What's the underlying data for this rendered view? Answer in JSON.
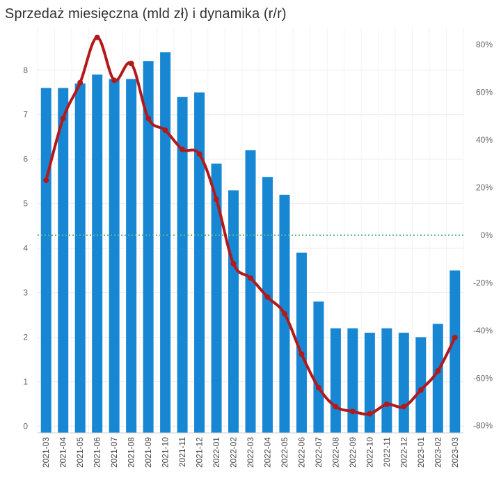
{
  "title": "Sprzedaż miesięczna (mld zł) i dynamika (r/r)",
  "colors": {
    "bar": "#1787d3",
    "line": "#b3191a",
    "zero_line": "#5fb68f",
    "grid": "#ececec"
  },
  "chart_data": {
    "type": "bar",
    "title": "Sprzedaż miesięczna (mld zł) i dynamika (r/r)",
    "categories": [
      "2021-03",
      "2021-04",
      "2021-05",
      "2021-06",
      "2021-07",
      "2021-08",
      "2021-09",
      "2021-10",
      "2021-11",
      "2021-12",
      "2022-01",
      "2022-02",
      "2022-03",
      "2022-04",
      "2022-05",
      "2022-06",
      "2022-07",
      "2022-08",
      "2022-09",
      "2022-10",
      "2022-11",
      "2022-12",
      "2023-01",
      "2023-02",
      "2023-03"
    ],
    "series": [
      {
        "name": "Sprzedaż (mld zł)",
        "type": "bar",
        "axis": "left",
        "values": [
          7.6,
          7.6,
          7.7,
          7.9,
          7.8,
          7.8,
          8.2,
          8.4,
          7.4,
          7.5,
          5.9,
          5.3,
          6.2,
          5.6,
          5.2,
          3.9,
          2.8,
          2.2,
          2.2,
          2.1,
          2.2,
          2.1,
          2.0,
          2.3,
          3.5
        ]
      },
      {
        "name": "Dynamika r/r (%)",
        "type": "line",
        "axis": "right",
        "values": [
          23,
          49,
          64,
          83,
          65,
          72,
          49,
          44,
          36,
          34,
          15,
          -12,
          -18,
          -26,
          -33,
          -50,
          -64,
          -72,
          -74,
          -75,
          -71,
          -72,
          -65,
          -57,
          -43
        ]
      }
    ],
    "y_left": {
      "ylim": [
        -0.15,
        8.95
      ],
      "ticks": [
        0,
        1,
        2,
        3,
        4,
        5,
        6,
        7,
        8
      ],
      "tick_labels": [
        "0",
        "1",
        "2",
        "3",
        "4",
        "5",
        "6",
        "7",
        "8"
      ]
    },
    "y_right": {
      "ylim": [
        -83,
        87
      ],
      "ticks": [
        80,
        60,
        40,
        20,
        0,
        -20,
        -40,
        -60,
        -80
      ],
      "tick_labels": [
        "80%",
        "60%",
        "40%",
        "20%",
        "0%",
        "-20%",
        "-40%",
        "-60%",
        "-80%"
      ]
    },
    "reference_line": {
      "axis": "right",
      "value": 0,
      "style": "dotted"
    },
    "xlabel": "",
    "ylabel": "",
    "grid": true,
    "legend": "none"
  }
}
